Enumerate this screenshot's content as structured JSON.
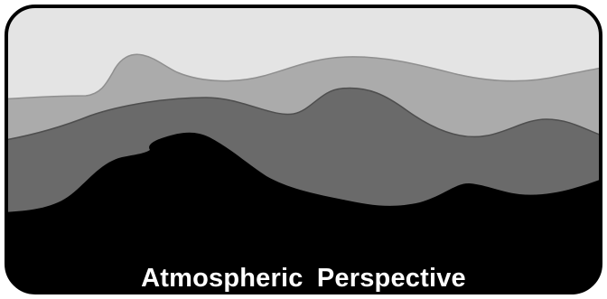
{
  "caption": "Atmospheric  Perspective",
  "colors": {
    "sky": "#e4e4e4",
    "far_hills": "#ababab",
    "mid_hills": "#6a6a6a",
    "near_hills": "#000000",
    "border": "#000000",
    "caption_text": "#ffffff"
  },
  "layers": [
    {
      "name": "sky"
    },
    {
      "name": "far-hills"
    },
    {
      "name": "mid-hills"
    },
    {
      "name": "near-hills"
    }
  ]
}
